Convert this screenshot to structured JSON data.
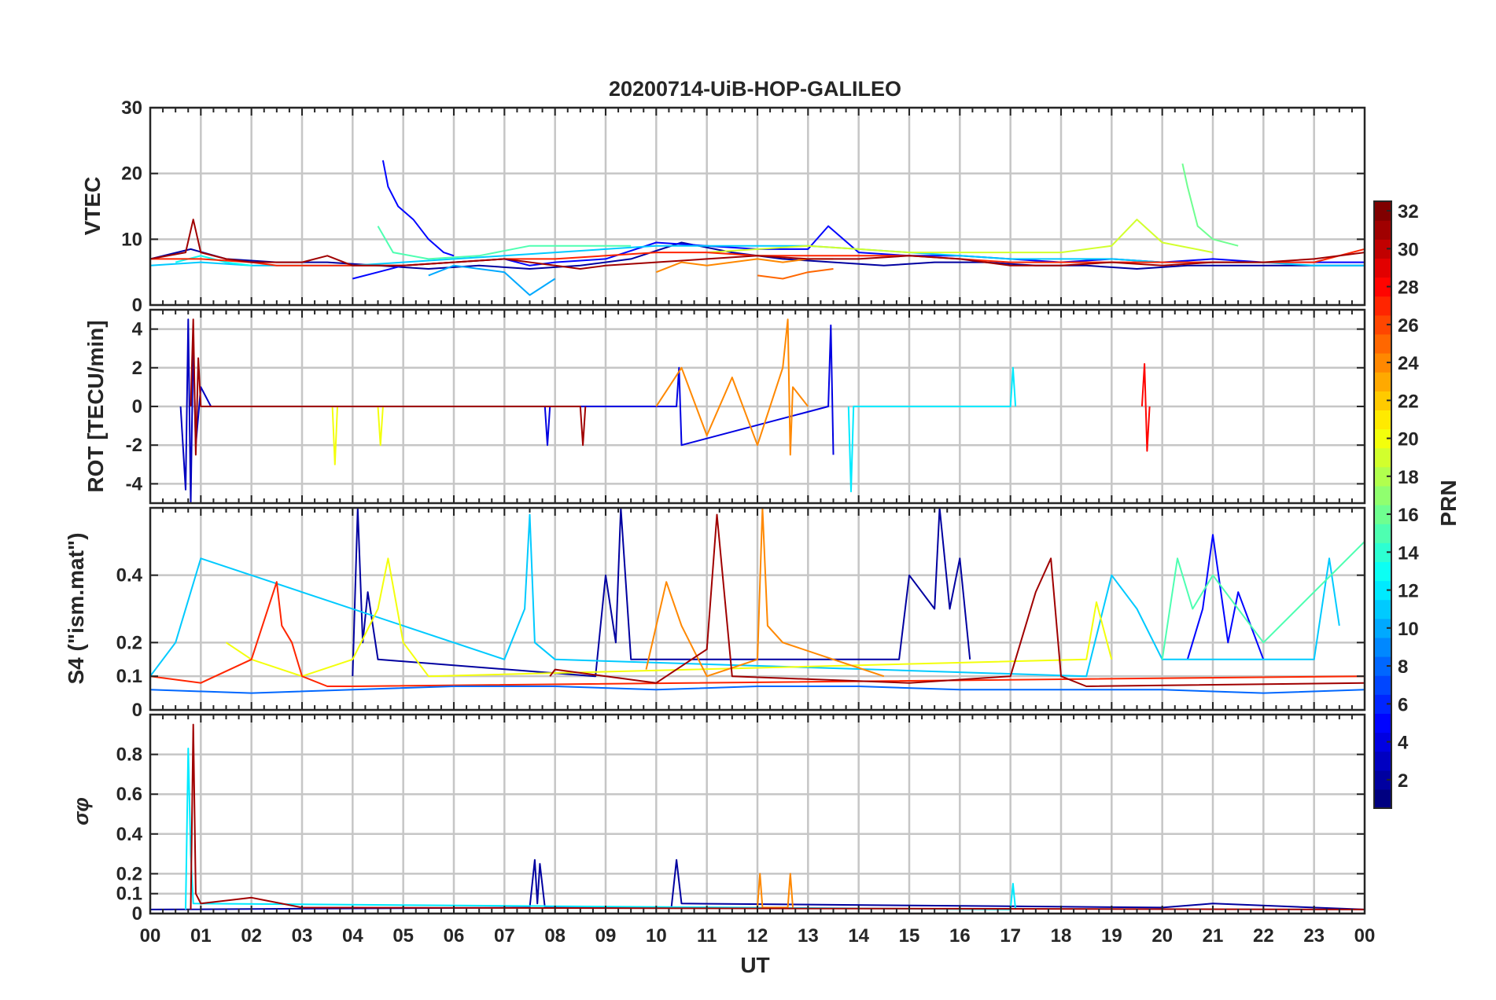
{
  "chart_data": {
    "type": "line",
    "title": "20200714-UiB-HOP-GALILEO",
    "xlabel": "UT",
    "x_ticks": [
      "00",
      "01",
      "02",
      "03",
      "04",
      "05",
      "06",
      "07",
      "08",
      "09",
      "10",
      "11",
      "12",
      "13",
      "14",
      "15",
      "16",
      "17",
      "18",
      "19",
      "20",
      "21",
      "22",
      "23",
      "00"
    ],
    "x_range_hours": [
      0,
      24
    ],
    "colormap": "jet",
    "colorbar": {
      "label": "PRN",
      "range": [
        1,
        32
      ],
      "ticks": [
        "2",
        "4",
        "6",
        "8",
        "10",
        "12",
        "14",
        "16",
        "18",
        "20",
        "22",
        "24",
        "26",
        "28",
        "30",
        "32"
      ]
    },
    "grid": true,
    "panels": [
      {
        "id": "vtec",
        "ylabel": "VTEC",
        "ylim": [
          0,
          30
        ],
        "y_ticks": [
          "0",
          "10",
          "20",
          "30"
        ],
        "y_tick_values": [
          0,
          10,
          20,
          30
        ],
        "series": [
          {
            "prn": 2,
            "x": [
              0,
              0.8,
              1.5,
              2.5,
              3.5,
              4.5,
              5.5,
              6.5,
              7.5,
              8.5,
              9.5,
              10.5,
              11.5,
              12.5,
              13.5,
              14.5,
              15.5,
              16.5,
              17.5,
              18.5,
              19.5,
              20.5,
              21.5,
              22.5,
              23.5,
              24
            ],
            "y": [
              7,
              8.5,
              7,
              6.5,
              6.5,
              6,
              5.5,
              6,
              5.5,
              6,
              7,
              9.5,
              8,
              7,
              6.5,
              6,
              6.5,
              6.5,
              6,
              6,
              5.5,
              6,
              6,
              6,
              6,
              6
            ]
          },
          {
            "prn": 5,
            "x": [
              4.6,
              4.7,
              4.9,
              5.2,
              5.5,
              5.8,
              6.0
            ],
            "y": [
              22,
              18,
              15,
              13,
              10,
              8,
              7.5
            ]
          },
          {
            "prn": 5,
            "x": [
              4.0,
              4.5,
              5.0,
              6.0,
              7.0,
              7.5,
              8.0,
              9.0,
              10.0,
              11.0,
              12.0,
              13.0,
              13.4,
              14.0,
              15.0,
              16.0,
              17.0,
              18.0,
              19.0,
              20.0,
              21.0,
              22.0,
              23.0,
              24.0
            ],
            "y": [
              4,
              5,
              6,
              6.5,
              7,
              6,
              6.5,
              7,
              9.5,
              9,
              8.5,
              8.5,
              12,
              8,
              7.5,
              7.5,
              7,
              6.5,
              7,
              6.5,
              7,
              6.5,
              6.5,
              6.5
            ]
          },
          {
            "prn": 10,
            "x": [
              5.5,
              6.0,
              7.0,
              7.5,
              7.8,
              8.0
            ],
            "y": [
              4.5,
              6,
              5,
              1.5,
              3,
              4
            ]
          },
          {
            "prn": 11,
            "x": [
              0,
              1,
              2,
              3,
              4,
              5,
              6,
              7,
              8,
              9,
              10,
              11,
              12,
              13,
              14,
              15,
              16,
              17,
              18,
              19,
              20,
              21,
              22,
              23,
              24
            ],
            "y": [
              6,
              6.5,
              6,
              6,
              6,
              6.5,
              7,
              7.5,
              8,
              8.5,
              9,
              9,
              9,
              9,
              8.5,
              8,
              7.5,
              7,
              7,
              7,
              6.5,
              6.5,
              6.5,
              6,
              6
            ]
          },
          {
            "prn": 13,
            "x": [
              0.5,
              1.0,
              1.5,
              2.0
            ],
            "y": [
              6.5,
              7.5,
              6.5,
              6
            ]
          },
          {
            "prn": 15,
            "x": [
              4.5,
              4.8,
              5.5,
              6.5,
              7.5,
              8.5,
              9.5
            ],
            "y": [
              12,
              8,
              7,
              7.5,
              9,
              9,
              9
            ]
          },
          {
            "prn": 16,
            "x": [
              20.4,
              20.5,
              20.7,
              21.0,
              21.5
            ],
            "y": [
              21.5,
              18,
              12,
              10,
              9
            ]
          },
          {
            "prn": 19,
            "x": [
              11.0,
              12.0,
              13.0,
              14.0,
              15.0,
              16.0,
              17.0,
              18.0,
              19.0,
              19.5,
              20.0,
              21.0
            ],
            "y": [
              8,
              8.5,
              9,
              8.5,
              8,
              8,
              8,
              8,
              9,
              13,
              9.5,
              8
            ]
          },
          {
            "prn": 24,
            "x": [
              10.0,
              10.5,
              11.0,
              12.0,
              12.5,
              13.0,
              13.5
            ],
            "y": [
              5,
              6.5,
              6,
              7,
              6.5,
              7,
              7
            ]
          },
          {
            "prn": 25,
            "x": [
              12.0,
              12.5,
              13.0,
              13.5
            ],
            "y": [
              4.5,
              4,
              5,
              5.5
            ]
          },
          {
            "prn": 27,
            "x": [
              0,
              1,
              2,
              2.5,
              3,
              4,
              5,
              6,
              7,
              8,
              9,
              10,
              11,
              12,
              13,
              14,
              15,
              16,
              17,
              18,
              19,
              20,
              21,
              22,
              23,
              24
            ],
            "y": [
              7,
              7,
              6.5,
              6,
              6,
              6,
              6,
              6.5,
              7,
              7,
              7.5,
              8,
              8,
              7.5,
              7.5,
              7.5,
              7.5,
              7,
              6.5,
              6.5,
              6.5,
              6.5,
              6.5,
              6.5,
              6.5,
              8.5
            ]
          },
          {
            "prn": 31,
            "x": [
              0,
              0.7,
              0.85,
              1.0,
              1.5,
              2.0,
              3.0,
              3.5,
              4.0,
              5.0,
              6.0,
              7.0,
              8.0,
              8.5,
              9.0,
              10.0,
              11.0,
              12.0,
              13.0,
              14.0,
              15.0,
              16.0,
              17.0,
              18.0,
              19.0,
              20.0,
              21.0,
              22.0,
              23.0,
              24.0
            ],
            "y": [
              7,
              8,
              13,
              8,
              7,
              6.5,
              6.5,
              7.5,
              6,
              6,
              6.5,
              7,
              6,
              5.5,
              6,
              6.5,
              7,
              7.5,
              7,
              7,
              7.5,
              7,
              6,
              6,
              6.5,
              6,
              6.5,
              6.5,
              7,
              8
            ]
          }
        ]
      },
      {
        "id": "rot",
        "ylabel": "ROT [TECU/min]",
        "ylim": [
          -5,
          5
        ],
        "y_ticks": [
          "-4",
          "-2",
          "0",
          "2",
          "4"
        ],
        "y_tick_values": [
          -4,
          -2,
          0,
          2,
          4
        ],
        "series": [
          {
            "prn": 3,
            "x": [
              0.6,
              0.7,
              0.75,
              0.8,
              0.85,
              0.9,
              1.0,
              1.2
            ],
            "y": [
              0,
              -4.3,
              4.5,
              -5,
              3.5,
              -2,
              1,
              0
            ]
          },
          {
            "prn": 4,
            "x": [
              7.8,
              7.85,
              7.9,
              10.4,
              10.45,
              10.5,
              13.4,
              13.45,
              13.5
            ],
            "y": [
              0,
              -2,
              0,
              0,
              2,
              -2,
              0,
              4.2,
              -2.5
            ]
          },
          {
            "prn": 12,
            "x": [
              13.8,
              13.85,
              13.9,
              17.0,
              17.05,
              17.1
            ],
            "y": [
              0,
              -4.4,
              0,
              0,
              2,
              0
            ]
          },
          {
            "prn": 20,
            "x": [
              3.6,
              3.65,
              3.7,
              4.5,
              4.55,
              4.6
            ],
            "y": [
              0,
              -3,
              0,
              0,
              -2,
              0
            ]
          },
          {
            "prn": 24,
            "x": [
              10.0,
              10.5,
              11.0,
              11.5,
              12.0,
              12.5,
              12.6,
              12.65,
              12.7,
              13.0
            ],
            "y": [
              0,
              2,
              -1.5,
              1.5,
              -2,
              2,
              4.5,
              -2.5,
              1,
              0
            ]
          },
          {
            "prn": 28,
            "x": [
              19.6,
              19.65,
              19.7,
              19.75
            ],
            "y": [
              0,
              2.2,
              -2.3,
              0
            ]
          },
          {
            "prn": 31,
            "x": [
              0.8,
              0.85,
              0.9,
              0.95,
              1.0,
              8.5,
              8.55,
              8.6
            ],
            "y": [
              0,
              4.5,
              -2.5,
              2.5,
              0,
              0,
              -2,
              0
            ]
          }
        ]
      },
      {
        "id": "s4",
        "ylabel": "S4 (\"ism.mat\")",
        "ylim": [
          0,
          0.6
        ],
        "y_ticks": [
          "0",
          "0.1",
          "0.2",
          "0.4"
        ],
        "y_tick_values": [
          0,
          0.1,
          0.2,
          0.4
        ],
        "series": [
          {
            "prn": 2,
            "x": [
              4.0,
              4.1,
              4.2,
              4.3,
              4.5,
              8.8,
              9.0,
              9.2,
              9.3,
              9.5,
              14.8,
              15.0,
              15.5,
              15.6,
              15.8,
              16.0,
              16.2
            ],
            "y": [
              0.1,
              0.6,
              0.2,
              0.35,
              0.15,
              0.1,
              0.4,
              0.2,
              0.6,
              0.15,
              0.15,
              0.4,
              0.3,
              0.6,
              0.3,
              0.45,
              0.15
            ]
          },
          {
            "prn": 5,
            "x": [
              20.5,
              20.8,
              21.0,
              21.3,
              21.5,
              22.0
            ],
            "y": [
              0.15,
              0.3,
              0.52,
              0.2,
              0.35,
              0.15
            ]
          },
          {
            "prn": 11,
            "x": [
              0,
              0.5,
              1.0,
              7.0,
              7.4,
              7.5,
              7.6,
              8.0,
              18.5,
              19.0,
              19.5,
              20.0,
              23.0,
              23.3,
              23.5
            ],
            "y": [
              0.1,
              0.2,
              0.45,
              0.15,
              0.3,
              0.58,
              0.2,
              0.15,
              0.1,
              0.4,
              0.3,
              0.15,
              0.15,
              0.45,
              0.25
            ]
          },
          {
            "prn": 15,
            "x": [
              20.0,
              20.3,
              20.6,
              21.0,
              22.0,
              24.0
            ],
            "y": [
              0.15,
              0.45,
              0.3,
              0.4,
              0.2,
              0.5
            ]
          },
          {
            "prn": 20,
            "x": [
              1.5,
              2.0,
              3.0,
              4.0,
              4.5,
              4.7,
              5.0,
              5.5,
              18.5,
              18.7,
              19.0
            ],
            "y": [
              0.2,
              0.15,
              0.1,
              0.15,
              0.3,
              0.45,
              0.2,
              0.1,
              0.15,
              0.32,
              0.15
            ]
          },
          {
            "prn": 24,
            "x": [
              9.8,
              10.2,
              10.5,
              11.0,
              12.0,
              12.1,
              12.2,
              12.5,
              13.5,
              14.5
            ],
            "y": [
              0.12,
              0.38,
              0.25,
              0.1,
              0.15,
              0.6,
              0.25,
              0.2,
              0.15,
              0.1
            ]
          },
          {
            "prn": 27,
            "x": [
              0,
              1.0,
              2.0,
              2.5,
              2.6,
              2.8,
              3.0,
              3.5,
              4.0,
              24.0
            ],
            "y": [
              0.1,
              0.08,
              0.15,
              0.38,
              0.25,
              0.2,
              0.1,
              0.07,
              0.07,
              0.1
            ]
          },
          {
            "prn": 31,
            "x": [
              7.9,
              8.0,
              10.0,
              11.0,
              11.2,
              11.5,
              15.0,
              17.0,
              17.5,
              17.8,
              18.0,
              18.5,
              24.0
            ],
            "y": [
              0.1,
              0.12,
              0.08,
              0.18,
              0.58,
              0.1,
              0.08,
              0.1,
              0.35,
              0.45,
              0.1,
              0.07,
              0.08
            ]
          },
          {
            "prn": 8,
            "x": [
              0,
              2,
              4,
              6,
              8,
              10,
              12,
              14,
              16,
              18,
              20,
              22,
              24
            ],
            "y": [
              0.06,
              0.05,
              0.06,
              0.07,
              0.07,
              0.06,
              0.07,
              0.07,
              0.06,
              0.06,
              0.06,
              0.05,
              0.06
            ]
          }
        ]
      },
      {
        "id": "sigma_phi",
        "ylabel": "σφ",
        "ylim": [
          0,
          1
        ],
        "y_ticks": [
          "0",
          "0.1",
          "0.2",
          "0.4",
          "0.6",
          "0.8"
        ],
        "y_tick_values": [
          0,
          0.1,
          0.2,
          0.4,
          0.6,
          0.8
        ],
        "series": [
          {
            "prn": 2,
            "x": [
              0,
              7.5,
              7.6,
              7.65,
              7.7,
              7.8,
              10.3,
              10.4,
              10.5,
              20.0,
              21.0,
              24.0
            ],
            "y": [
              0.02,
              0.03,
              0.27,
              0.05,
              0.25,
              0.03,
              0.03,
              0.27,
              0.05,
              0.03,
              0.05,
              0.02
            ]
          },
          {
            "prn": 12,
            "x": [
              0.7,
              0.75,
              0.8,
              0.85,
              17.0,
              17.05,
              17.1
            ],
            "y": [
              0.02,
              0.83,
              0.3,
              0.05,
              0.02,
              0.15,
              0.02
            ]
          },
          {
            "prn": 24,
            "x": [
              12.0,
              12.05,
              12.1,
              12.6,
              12.65,
              12.7
            ],
            "y": [
              0.03,
              0.2,
              0.03,
              0.03,
              0.2,
              0.03
            ]
          },
          {
            "prn": 31,
            "x": [
              0.8,
              0.85,
              0.9,
              1.0,
              2.0,
              3.0,
              24.0
            ],
            "y": [
              0.02,
              0.95,
              0.1,
              0.05,
              0.08,
              0.03,
              0.02
            ]
          }
        ]
      }
    ]
  }
}
